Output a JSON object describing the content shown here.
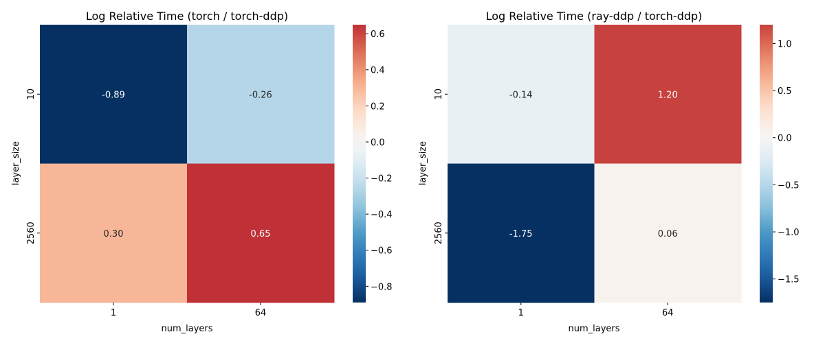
{
  "chart_data": [
    {
      "type": "heatmap",
      "title": "Log Relative Time (torch / torch-ddp)",
      "xlabel": "num_layers",
      "ylabel": "layer_size",
      "x_categories": [
        "1",
        "64"
      ],
      "y_categories": [
        "10",
        "2560"
      ],
      "values": [
        [
          -0.89,
          -0.26
        ],
        [
          0.3,
          0.65
        ]
      ],
      "annotations": [
        [
          "-0.89",
          "-0.26"
        ],
        [
          "0.30",
          "0.65"
        ]
      ],
      "colormap": "RdBu_r",
      "vmin": -0.89,
      "vmax": 0.65,
      "center": 0,
      "colorbar_ticks": [
        0.6,
        0.4,
        0.2,
        0.0,
        -0.2,
        -0.4,
        -0.6,
        -0.8
      ],
      "colorbar_tick_labels": [
        "0.6",
        "0.4",
        "0.2",
        "0.0",
        "−0.2",
        "−0.4",
        "−0.6",
        "−0.8"
      ]
    },
    {
      "type": "heatmap",
      "title": "Log Relative Time (ray-ddp / torch-ddp)",
      "xlabel": "num_layers",
      "ylabel": "layer_size",
      "x_categories": [
        "1",
        "64"
      ],
      "y_categories": [
        "10",
        "2560"
      ],
      "values": [
        [
          -0.14,
          1.2
        ],
        [
          -1.75,
          0.06
        ]
      ],
      "annotations": [
        [
          "-0.14",
          "1.20"
        ],
        [
          "-1.75",
          "0.06"
        ]
      ],
      "colormap": "RdBu_r",
      "vmin": -1.75,
      "vmax": 1.2,
      "center": 0,
      "colorbar_ticks": [
        1.0,
        0.5,
        0.0,
        -0.5,
        -1.0,
        -1.5
      ],
      "colorbar_tick_labels": [
        "1.0",
        "0.5",
        "0.0",
        "−0.5",
        "−1.0",
        "−1.5"
      ]
    }
  ]
}
